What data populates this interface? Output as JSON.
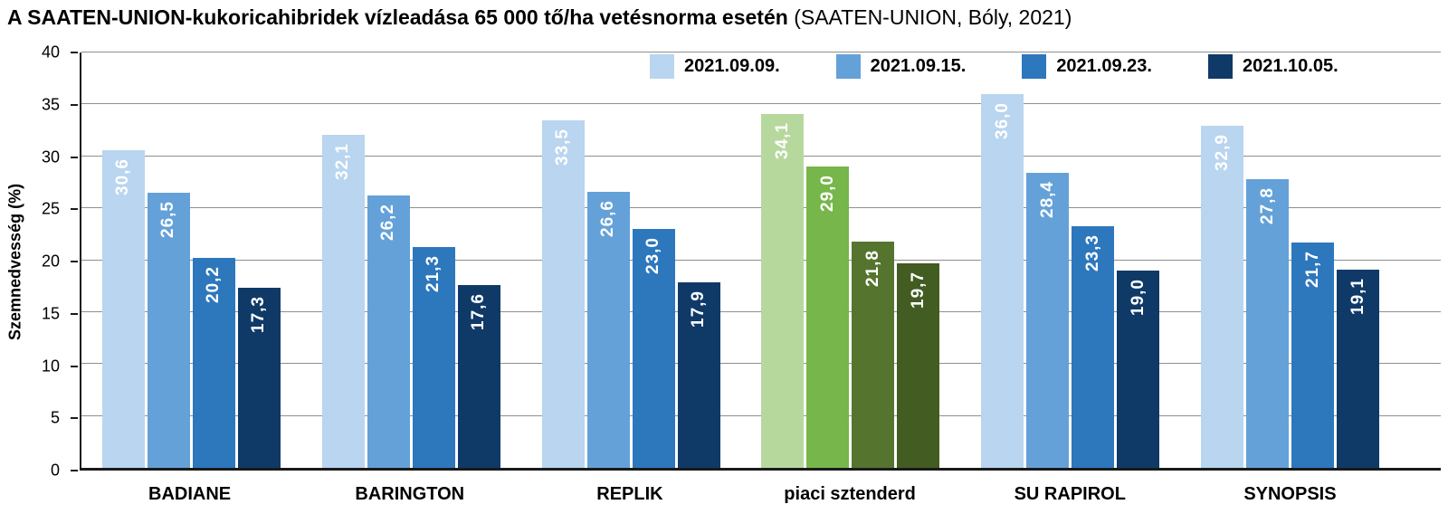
{
  "title": {
    "main": "A SAATEN-UNION-kukoricahibridek vízleadása 65 000 tő/ha vetésnorma esetén",
    "note": " (SAATEN-UNION, Bóly, 2021)"
  },
  "chart_data": {
    "type": "bar",
    "title": "A SAATEN-UNION-kukoricahibridek vízleadása 65 000 tő/ha vetésnorma esetén (SAATEN-UNION, Bóly, 2021)",
    "xlabel": "",
    "ylabel": "Szemnedvesség (%)",
    "ylim": [
      0,
      40
    ],
    "yticks": [
      0,
      5,
      10,
      15,
      20,
      25,
      30,
      35,
      40
    ],
    "grid": true,
    "legend_position": "top",
    "categories": [
      "BADIANE",
      "BARINGTON",
      "REPLIK",
      "piaci sztenderd",
      "SU RAPIROL",
      "SYNOPSIS"
    ],
    "series": [
      {
        "name": "2021.09.09.",
        "color": "#b9d5ef",
        "values": [
          30.6,
          32.1,
          33.5,
          34.1,
          36.0,
          32.9
        ],
        "labels": [
          "30,6",
          "32,1",
          "33,5",
          "34,1",
          "36,0",
          "32,9"
        ]
      },
      {
        "name": "2021.09.15.",
        "color": "#64a1d8",
        "values": [
          26.5,
          26.2,
          26.6,
          29.0,
          28.4,
          27.8
        ],
        "labels": [
          "26,5",
          "26,2",
          "26,6",
          "29,0",
          "28,4",
          "27,8"
        ]
      },
      {
        "name": "2021.09.23.",
        "color": "#2d77bd",
        "values": [
          20.2,
          21.3,
          23.0,
          21.8,
          23.3,
          21.7
        ],
        "labels": [
          "20,2",
          "21,3",
          "23,0",
          "21,8",
          "23,3",
          "21,7"
        ]
      },
      {
        "name": "2021.10.05.",
        "color": "#0f3a68",
        "values": [
          17.3,
          17.6,
          17.9,
          19.7,
          19.0,
          19.1
        ],
        "labels": [
          "17,3",
          "17,6",
          "17,9",
          "19,7",
          "19,0",
          "19,1"
        ]
      }
    ],
    "highlight": {
      "category": "piaci sztenderd",
      "colors": [
        "#b6d89d",
        "#76b64a",
        "#55752f",
        "#425c22"
      ]
    },
    "axis_color": "#1a1a1a",
    "gridline_color": "#8f8f8f"
  }
}
